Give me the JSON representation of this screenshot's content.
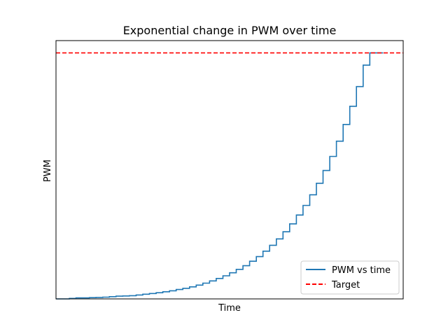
{
  "chart_data": {
    "type": "line",
    "title": "Exponential change in PWM over time",
    "xlabel": "Time",
    "ylabel": "PWM",
    "xlim": [
      0,
      52
    ],
    "ylim": [
      0,
      1.05
    ],
    "grid": false,
    "xticks": false,
    "yticks": false,
    "legend_position": "lower right",
    "series": [
      {
        "name": "PWM vs time",
        "style": "steps-post",
        "color": "#1f77b4",
        "x": [
          0,
          1,
          2,
          3,
          4,
          5,
          6,
          7,
          8,
          9,
          10,
          11,
          12,
          13,
          14,
          15,
          16,
          17,
          18,
          19,
          20,
          21,
          22,
          23,
          24,
          25,
          26,
          27,
          28,
          29,
          30,
          31,
          32,
          33,
          34,
          35,
          36,
          37,
          38,
          39,
          40,
          41,
          42,
          43,
          44,
          45,
          46,
          47,
          48,
          49
        ],
        "values": [
          0.0,
          0.0,
          0.002,
          0.004,
          0.004,
          0.005,
          0.006,
          0.007,
          0.009,
          0.011,
          0.012,
          0.013,
          0.016,
          0.019,
          0.022,
          0.025,
          0.029,
          0.033,
          0.038,
          0.043,
          0.049,
          0.056,
          0.064,
          0.073,
          0.083,
          0.094,
          0.106,
          0.12,
          0.135,
          0.153,
          0.172,
          0.194,
          0.218,
          0.244,
          0.273,
          0.305,
          0.341,
          0.38,
          0.423,
          0.47,
          0.522,
          0.579,
          0.641,
          0.709,
          0.783,
          0.863,
          0.95,
          1.0,
          1.0,
          1.0
        ]
      },
      {
        "name": "Target",
        "style": "dashed",
        "color": "#ff0000",
        "y": 1.0
      }
    ]
  }
}
